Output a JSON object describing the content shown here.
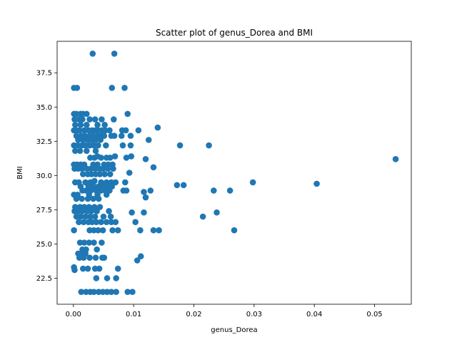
{
  "chart_data": {
    "type": "scatter",
    "title": "Scatter plot of genus_Dorea and BMI",
    "xlabel": "genus_Dorea",
    "ylabel": "BMI",
    "xlim": [
      -0.0027,
      0.0561
    ],
    "ylim": [
      20.6,
      39.8
    ],
    "xticks": [
      0.0,
      0.01,
      0.02,
      0.03,
      0.04,
      0.05
    ],
    "xtick_labels": [
      "0.00",
      "0.01",
      "0.02",
      "0.03",
      "0.04",
      "0.05"
    ],
    "yticks": [
      22.5,
      25.0,
      27.5,
      30.0,
      32.5,
      35.0,
      37.5
    ],
    "ytick_labels": [
      "22.5",
      "25.0",
      "27.5",
      "30.0",
      "32.5",
      "35.0",
      "37.5"
    ],
    "grid": false,
    "legend": "none",
    "marker_color": "#1f77b4",
    "points": [
      [
        0.0032,
        38.9
      ],
      [
        0.0068,
        38.9
      ],
      [
        0.0001,
        36.4
      ],
      [
        0.0006,
        36.4
      ],
      [
        0.0064,
        36.4
      ],
      [
        0.0085,
        36.4
      ],
      [
        0.0001,
        34.5
      ],
      [
        0.0005,
        34.5
      ],
      [
        0.0012,
        34.5
      ],
      [
        0.0016,
        34.5
      ],
      [
        0.0022,
        34.5
      ],
      [
        0.009,
        34.5
      ],
      [
        0.0002,
        34.1
      ],
      [
        0.0009,
        34.1
      ],
      [
        0.0015,
        34.1
      ],
      [
        0.0027,
        34.1
      ],
      [
        0.0036,
        34.1
      ],
      [
        0.0047,
        34.1
      ],
      [
        0.0067,
        34.1
      ],
      [
        0.0003,
        33.7
      ],
      [
        0.0012,
        33.7
      ],
      [
        0.0022,
        33.7
      ],
      [
        0.004,
        33.7
      ],
      [
        0.0052,
        33.7
      ],
      [
        0.0001,
        33.3
      ],
      [
        0.0005,
        33.3
      ],
      [
        0.001,
        33.3
      ],
      [
        0.0018,
        33.3
      ],
      [
        0.0025,
        33.3
      ],
      [
        0.0031,
        33.3
      ],
      [
        0.0036,
        33.3
      ],
      [
        0.0041,
        33.3
      ],
      [
        0.0047,
        33.3
      ],
      [
        0.0053,
        33.3
      ],
      [
        0.006,
        33.3
      ],
      [
        0.0081,
        33.3
      ],
      [
        0.0087,
        33.3
      ],
      [
        0.0108,
        33.3
      ],
      [
        0.014,
        33.5
      ],
      [
        0.0005,
        32.9
      ],
      [
        0.0013,
        32.9
      ],
      [
        0.0019,
        32.9
      ],
      [
        0.0027,
        32.9
      ],
      [
        0.0033,
        32.9
      ],
      [
        0.004,
        32.9
      ],
      [
        0.0046,
        32.9
      ],
      [
        0.0051,
        32.9
      ],
      [
        0.0063,
        32.9
      ],
      [
        0.0068,
        32.9
      ],
      [
        0.008,
        32.9
      ],
      [
        0.0095,
        32.9
      ],
      [
        0.0008,
        32.6
      ],
      [
        0.0016,
        32.6
      ],
      [
        0.0024,
        32.6
      ],
      [
        0.0031,
        32.6
      ],
      [
        0.0037,
        32.6
      ],
      [
        0.0045,
        32.6
      ],
      [
        0.0125,
        32.6
      ],
      [
        0.0001,
        32.2
      ],
      [
        0.0007,
        32.2
      ],
      [
        0.0014,
        32.2
      ],
      [
        0.002,
        32.2
      ],
      [
        0.0027,
        32.2
      ],
      [
        0.0034,
        32.2
      ],
      [
        0.0041,
        32.2
      ],
      [
        0.0054,
        32.2
      ],
      [
        0.0082,
        32.2
      ],
      [
        0.0095,
        32.2
      ],
      [
        0.0177,
        32.2
      ],
      [
        0.0225,
        32.2
      ],
      [
        0.0003,
        31.8
      ],
      [
        0.0011,
        31.8
      ],
      [
        0.0022,
        31.8
      ],
      [
        0.0037,
        31.8
      ],
      [
        0.0028,
        31.3
      ],
      [
        0.0035,
        31.3
      ],
      [
        0.004,
        31.4
      ],
      [
        0.0046,
        31.3
      ],
      [
        0.0055,
        31.3
      ],
      [
        0.0061,
        31.3
      ],
      [
        0.0069,
        31.4
      ],
      [
        0.0088,
        31.3
      ],
      [
        0.0096,
        31.4
      ],
      [
        0.012,
        31.2
      ],
      [
        0.0535,
        31.2
      ],
      [
        0.0001,
        30.8
      ],
      [
        0.0006,
        30.8
      ],
      [
        0.0012,
        30.8
      ],
      [
        0.0018,
        30.8
      ],
      [
        0.0033,
        30.8
      ],
      [
        0.004,
        30.8
      ],
      [
        0.0051,
        30.8
      ],
      [
        0.0058,
        30.8
      ],
      [
        0.0065,
        30.8
      ],
      [
        0.0002,
        30.5
      ],
      [
        0.0008,
        30.5
      ],
      [
        0.0014,
        30.5
      ],
      [
        0.0022,
        30.5
      ],
      [
        0.0029,
        30.5
      ],
      [
        0.0036,
        30.5
      ],
      [
        0.0043,
        30.5
      ],
      [
        0.0049,
        30.5
      ],
      [
        0.0057,
        30.5
      ],
      [
        0.0066,
        30.5
      ],
      [
        0.0133,
        30.6
      ],
      [
        0.0016,
        30.1
      ],
      [
        0.0024,
        30.1
      ],
      [
        0.003,
        30.1
      ],
      [
        0.0037,
        30.1
      ],
      [
        0.0044,
        30.1
      ],
      [
        0.0052,
        30.1
      ],
      [
        0.0061,
        30.1
      ],
      [
        0.0093,
        30.2
      ],
      [
        0.0003,
        29.5
      ],
      [
        0.0009,
        29.5
      ],
      [
        0.002,
        29.5
      ],
      [
        0.0028,
        29.5
      ],
      [
        0.0035,
        29.6
      ],
      [
        0.0046,
        29.5
      ],
      [
        0.0055,
        29.5
      ],
      [
        0.0063,
        29.5
      ],
      [
        0.007,
        29.5
      ],
      [
        0.0086,
        29.5
      ],
      [
        0.0298,
        29.5
      ],
      [
        0.0404,
        29.4
      ],
      [
        0.0012,
        29.2
      ],
      [
        0.0025,
        29.2
      ],
      [
        0.0034,
        29.2
      ],
      [
        0.0042,
        29.2
      ],
      [
        0.005,
        29.2
      ],
      [
        0.0057,
        29.2
      ],
      [
        0.0064,
        29.2
      ],
      [
        0.0172,
        29.3
      ],
      [
        0.0183,
        29.3
      ],
      [
        0.0015,
        28.9
      ],
      [
        0.0021,
        28.9
      ],
      [
        0.0029,
        28.9
      ],
      [
        0.0038,
        28.9
      ],
      [
        0.0046,
        28.9
      ],
      [
        0.0053,
        28.9
      ],
      [
        0.006,
        28.9
      ],
      [
        0.0083,
        28.9
      ],
      [
        0.0088,
        28.9
      ],
      [
        0.0117,
        28.8
      ],
      [
        0.0128,
        28.9
      ],
      [
        0.0233,
        28.9
      ],
      [
        0.026,
        28.9
      ],
      [
        0.0001,
        28.6
      ],
      [
        0.0007,
        28.6
      ],
      [
        0.0026,
        28.6
      ],
      [
        0.004,
        28.6
      ],
      [
        0.0055,
        28.6
      ],
      [
        0.0005,
        28.3
      ],
      [
        0.0014,
        28.3
      ],
      [
        0.0024,
        28.3
      ],
      [
        0.0033,
        28.3
      ],
      [
        0.0042,
        28.3
      ],
      [
        0.012,
        28.4
      ],
      [
        0.0003,
        27.7
      ],
      [
        0.0011,
        27.7
      ],
      [
        0.0018,
        27.7
      ],
      [
        0.0026,
        27.7
      ],
      [
        0.0035,
        27.7
      ],
      [
        0.0044,
        27.7
      ],
      [
        0.0002,
        27.4
      ],
      [
        0.0008,
        27.4
      ],
      [
        0.0015,
        27.4
      ],
      [
        0.0023,
        27.4
      ],
      [
        0.003,
        27.4
      ],
      [
        0.0039,
        27.4
      ],
      [
        0.0059,
        27.4
      ],
      [
        0.0097,
        27.3
      ],
      [
        0.0117,
        27.3
      ],
      [
        0.0238,
        27.3
      ],
      [
        0.0005,
        27.0
      ],
      [
        0.0012,
        27.0
      ],
      [
        0.002,
        27.0
      ],
      [
        0.0028,
        27.0
      ],
      [
        0.0036,
        27.0
      ],
      [
        0.005,
        27.0
      ],
      [
        0.0062,
        27.0
      ],
      [
        0.0215,
        27.0
      ],
      [
        0.0009,
        26.6
      ],
      [
        0.0017,
        26.6
      ],
      [
        0.0025,
        26.6
      ],
      [
        0.0031,
        26.6
      ],
      [
        0.0038,
        26.6
      ],
      [
        0.0046,
        26.6
      ],
      [
        0.0055,
        26.6
      ],
      [
        0.0063,
        26.6
      ],
      [
        0.007,
        26.6
      ],
      [
        0.0103,
        26.6
      ],
      [
        0.0001,
        26.0
      ],
      [
        0.0027,
        26.0
      ],
      [
        0.0034,
        26.0
      ],
      [
        0.0041,
        26.0
      ],
      [
        0.0049,
        26.0
      ],
      [
        0.0065,
        26.0
      ],
      [
        0.0074,
        26.0
      ],
      [
        0.0111,
        26.0
      ],
      [
        0.0133,
        26.0
      ],
      [
        0.0142,
        26.0
      ],
      [
        0.0267,
        26.0
      ],
      [
        0.0011,
        25.1
      ],
      [
        0.0018,
        25.1
      ],
      [
        0.0026,
        25.1
      ],
      [
        0.0034,
        25.1
      ],
      [
        0.0047,
        25.1
      ],
      [
        0.0015,
        24.6
      ],
      [
        0.0021,
        24.6
      ],
      [
        0.0039,
        24.6
      ],
      [
        0.0008,
        24.3
      ],
      [
        0.0013,
        24.3
      ],
      [
        0.002,
        24.3
      ],
      [
        0.001,
        24.0
      ],
      [
        0.0017,
        24.0
      ],
      [
        0.0027,
        24.0
      ],
      [
        0.0037,
        24.0
      ],
      [
        0.0048,
        24.0
      ],
      [
        0.0051,
        24.0
      ],
      [
        0.0112,
        24.1
      ],
      [
        0.0106,
        23.8
      ],
      [
        0.0001,
        23.3
      ],
      [
        0.0002,
        23.1
      ],
      [
        0.0016,
        23.2
      ],
      [
        0.0024,
        23.2
      ],
      [
        0.0036,
        23.2
      ],
      [
        0.0043,
        23.2
      ],
      [
        0.0074,
        23.2
      ],
      [
        0.0038,
        22.5
      ],
      [
        0.0056,
        22.5
      ],
      [
        0.0071,
        22.5
      ],
      [
        0.0013,
        21.5
      ],
      [
        0.0021,
        21.5
      ],
      [
        0.0028,
        21.5
      ],
      [
        0.0034,
        21.5
      ],
      [
        0.0042,
        21.5
      ],
      [
        0.0049,
        21.5
      ],
      [
        0.0056,
        21.5
      ],
      [
        0.0063,
        21.5
      ],
      [
        0.0071,
        21.5
      ],
      [
        0.009,
        21.5
      ],
      [
        0.0098,
        21.5
      ]
    ]
  }
}
